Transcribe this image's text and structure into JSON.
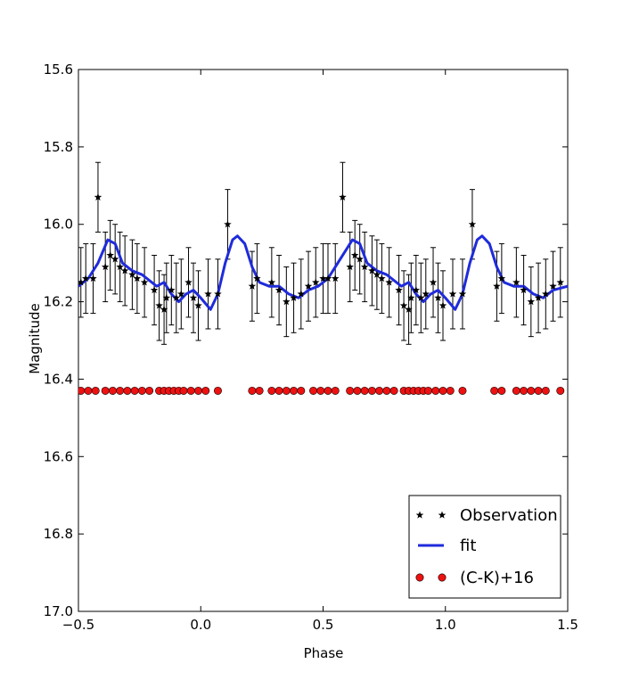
{
  "chart_data": {
    "type": "scatter",
    "xlabel": "Phase",
    "ylabel": "Magnitude",
    "xlim": [
      -0.5,
      1.5
    ],
    "ylim": [
      15.6,
      17.0
    ],
    "y_inverted": true,
    "x_ticks": [
      -0.5,
      0.0,
      0.5,
      1.0,
      1.5
    ],
    "x_tick_labels": [
      "−0.5",
      "0.0",
      "0.5",
      "1.0",
      "1.5"
    ],
    "y_ticks": [
      15.6,
      15.8,
      16.0,
      16.2,
      16.4,
      16.6,
      16.8,
      17.0
    ],
    "y_tick_labels": [
      "15.6",
      "15.8",
      "16.0",
      "16.2",
      "16.4",
      "16.6",
      "16.8",
      "17.0"
    ],
    "grid": false,
    "legend_position": "bottom-right",
    "colors": {
      "observation": "#000000",
      "fit": "#1f2bdb",
      "color_index": "#ee1111"
    },
    "series": [
      {
        "name": "Observation",
        "marker": "star",
        "points": [
          [
            -0.49,
            16.15,
            0.09
          ],
          [
            -0.47,
            16.14,
            0.09
          ],
          [
            -0.44,
            16.14,
            0.09
          ],
          [
            -0.42,
            15.93,
            0.09
          ],
          [
            -0.39,
            16.11,
            0.09
          ],
          [
            -0.37,
            16.08,
            0.09
          ],
          [
            -0.35,
            16.09,
            0.09
          ],
          [
            -0.33,
            16.11,
            0.09
          ],
          [
            -0.31,
            16.12,
            0.09
          ],
          [
            -0.28,
            16.13,
            0.09
          ],
          [
            -0.26,
            16.14,
            0.09
          ],
          [
            -0.23,
            16.15,
            0.09
          ],
          [
            -0.19,
            16.17,
            0.09
          ],
          [
            -0.17,
            16.21,
            0.09
          ],
          [
            -0.15,
            16.22,
            0.09
          ],
          [
            -0.14,
            16.19,
            0.09
          ],
          [
            -0.12,
            16.17,
            0.09
          ],
          [
            -0.1,
            16.19,
            0.09
          ],
          [
            -0.08,
            16.18,
            0.09
          ],
          [
            -0.05,
            16.15,
            0.09
          ],
          [
            -0.03,
            16.19,
            0.09
          ],
          [
            -0.01,
            16.21,
            0.09
          ],
          [
            0.03,
            16.18,
            0.09
          ],
          [
            0.07,
            16.18,
            0.09
          ],
          [
            0.11,
            16.0,
            0.09
          ],
          [
            0.21,
            16.16,
            0.09
          ],
          [
            0.23,
            16.14,
            0.09
          ],
          [
            0.29,
            16.15,
            0.09
          ],
          [
            0.32,
            16.17,
            0.09
          ],
          [
            0.35,
            16.2,
            0.09
          ],
          [
            0.38,
            16.19,
            0.09
          ],
          [
            0.41,
            16.18,
            0.09
          ],
          [
            0.44,
            16.16,
            0.09
          ],
          [
            0.47,
            16.15,
            0.09
          ],
          [
            0.5,
            16.14,
            0.09
          ],
          [
            0.52,
            16.14,
            0.09
          ],
          [
            0.55,
            16.14,
            0.09
          ],
          [
            0.58,
            15.93,
            0.09
          ],
          [
            0.61,
            16.11,
            0.09
          ],
          [
            0.63,
            16.08,
            0.09
          ],
          [
            0.65,
            16.09,
            0.09
          ],
          [
            0.67,
            16.11,
            0.09
          ],
          [
            0.7,
            16.12,
            0.09
          ],
          [
            0.72,
            16.13,
            0.09
          ],
          [
            0.74,
            16.14,
            0.09
          ],
          [
            0.77,
            16.15,
            0.09
          ],
          [
            0.81,
            16.17,
            0.09
          ],
          [
            0.83,
            16.21,
            0.09
          ],
          [
            0.85,
            16.22,
            0.09
          ],
          [
            0.86,
            16.19,
            0.09
          ],
          [
            0.88,
            16.17,
            0.09
          ],
          [
            0.9,
            16.19,
            0.09
          ],
          [
            0.92,
            16.18,
            0.09
          ],
          [
            0.95,
            16.15,
            0.09
          ],
          [
            0.97,
            16.19,
            0.09
          ],
          [
            0.99,
            16.21,
            0.09
          ],
          [
            1.03,
            16.18,
            0.09
          ],
          [
            1.07,
            16.18,
            0.09
          ],
          [
            1.11,
            16.0,
            0.09
          ],
          [
            1.21,
            16.16,
            0.09
          ],
          [
            1.23,
            16.14,
            0.09
          ],
          [
            1.29,
            16.15,
            0.09
          ],
          [
            1.32,
            16.17,
            0.09
          ],
          [
            1.35,
            16.2,
            0.09
          ],
          [
            1.38,
            16.19,
            0.09
          ],
          [
            1.41,
            16.18,
            0.09
          ],
          [
            1.44,
            16.16,
            0.09
          ],
          [
            1.47,
            16.15,
            0.09
          ]
        ]
      },
      {
        "name": "fit",
        "type": "line",
        "points": [
          [
            -0.5,
            16.16
          ],
          [
            -0.46,
            16.14
          ],
          [
            -0.42,
            16.1
          ],
          [
            -0.38,
            16.04
          ],
          [
            -0.35,
            16.05
          ],
          [
            -0.32,
            16.1
          ],
          [
            -0.28,
            16.12
          ],
          [
            -0.24,
            16.13
          ],
          [
            -0.22,
            16.14
          ],
          [
            -0.18,
            16.16
          ],
          [
            -0.15,
            16.15
          ],
          [
            -0.12,
            16.18
          ],
          [
            -0.09,
            16.2
          ],
          [
            -0.06,
            16.18
          ],
          [
            -0.03,
            16.17
          ],
          [
            0.0,
            16.19
          ],
          [
            0.04,
            16.22
          ],
          [
            0.07,
            16.18
          ],
          [
            0.1,
            16.1
          ],
          [
            0.13,
            16.04
          ],
          [
            0.15,
            16.03
          ],
          [
            0.18,
            16.05
          ],
          [
            0.21,
            16.11
          ],
          [
            0.24,
            16.15
          ],
          [
            0.28,
            16.16
          ],
          [
            0.32,
            16.16
          ],
          [
            0.36,
            16.18
          ],
          [
            0.4,
            16.19
          ],
          [
            0.44,
            16.17
          ],
          [
            0.48,
            16.16
          ],
          [
            0.52,
            16.14
          ],
          [
            0.56,
            16.1
          ],
          [
            0.6,
            16.06
          ],
          [
            0.62,
            16.04
          ],
          [
            0.65,
            16.05
          ],
          [
            0.68,
            16.1
          ],
          [
            0.72,
            16.12
          ],
          [
            0.76,
            16.13
          ],
          [
            0.78,
            16.14
          ],
          [
            0.82,
            16.16
          ],
          [
            0.85,
            16.15
          ],
          [
            0.88,
            16.18
          ],
          [
            0.91,
            16.2
          ],
          [
            0.94,
            16.18
          ],
          [
            0.97,
            16.17
          ],
          [
            1.0,
            16.19
          ],
          [
            1.04,
            16.22
          ],
          [
            1.07,
            16.18
          ],
          [
            1.1,
            16.1
          ],
          [
            1.13,
            16.04
          ],
          [
            1.15,
            16.03
          ],
          [
            1.18,
            16.05
          ],
          [
            1.21,
            16.11
          ],
          [
            1.24,
            16.15
          ],
          [
            1.28,
            16.16
          ],
          [
            1.32,
            16.16
          ],
          [
            1.36,
            16.18
          ],
          [
            1.4,
            16.19
          ],
          [
            1.44,
            16.17
          ],
          [
            1.5,
            16.16
          ]
        ]
      },
      {
        "name": "(C-K)+16",
        "marker": "circle",
        "x": [
          -0.49,
          -0.46,
          -0.43,
          -0.39,
          -0.36,
          -0.33,
          -0.3,
          -0.27,
          -0.24,
          -0.21,
          -0.17,
          -0.15,
          -0.13,
          -0.11,
          -0.09,
          -0.07,
          -0.04,
          -0.01,
          0.02,
          0.07,
          0.21,
          0.24,
          0.29,
          0.32,
          0.35,
          0.38,
          0.41,
          0.46,
          0.49,
          0.52,
          0.55,
          0.61,
          0.64,
          0.67,
          0.7,
          0.73,
          0.76,
          0.79,
          0.83,
          0.85,
          0.87,
          0.89,
          0.91,
          0.93,
          0.96,
          0.99,
          1.02,
          1.07,
          1.2,
          1.23,
          1.29,
          1.32,
          1.35,
          1.38,
          1.41,
          1.47
        ],
        "y_constant": 16.43
      }
    ]
  }
}
